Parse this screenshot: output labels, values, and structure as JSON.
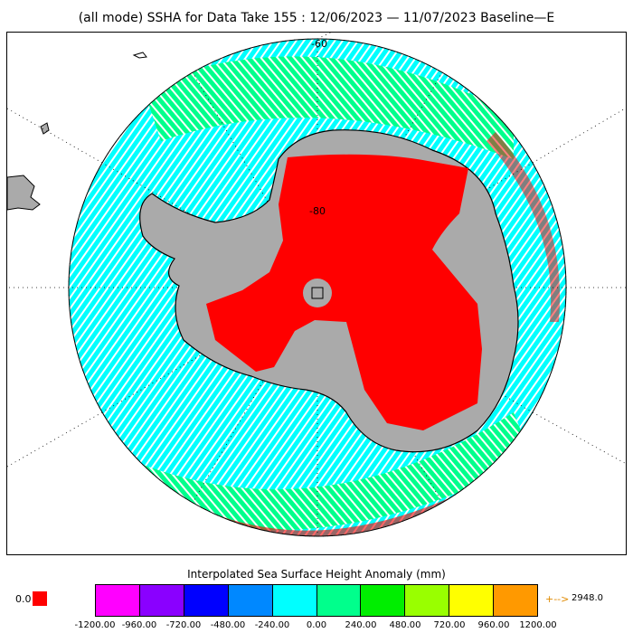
{
  "title": "(all mode) SSHA for Data Take 155 : 12/06/2023 — 11/07/2023 Baseline—E",
  "map": {
    "lat_labels": [
      "-60",
      "-80"
    ],
    "colors": {
      "land": "#aaaaaa",
      "ice_shelf": "#ff0000",
      "ocean_cyan": "#00ffff",
      "ocean_green": "#00ff88",
      "coast": "#000000"
    }
  },
  "colorbar": {
    "title": "Interpolated Sea Surface Height Anomaly (mm)",
    "colors": [
      "#ff00ff",
      "#8a00ff",
      "#0000ff",
      "#0088ff",
      "#00ffff",
      "#00ff8c",
      "#00ee00",
      "#99ff00",
      "#ffff00",
      "#ff9900"
    ],
    "ticks": [
      "-1200.00",
      "-960.00",
      "-720.00",
      "-480.00",
      "-240.00",
      "0.00",
      "240.00",
      "480.00",
      "720.00",
      "960.00",
      "1200.00"
    ],
    "under_label": "0.0",
    "under_color": "#ff0000",
    "over_arrow": "+-->",
    "over_label": "2948.0",
    "over_color": "#e08a00"
  }
}
